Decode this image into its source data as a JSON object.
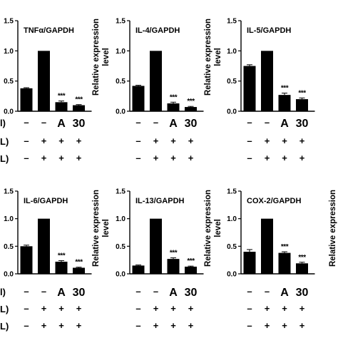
{
  "chart_data": [
    {
      "type": "bar",
      "title": "TNFα/GAPDH",
      "ylabel": "",
      "ylim": [
        0,
        1.5
      ],
      "yticks": [
        "0.0",
        "0.5",
        "1.0",
        "1.5"
      ],
      "values": [
        0.38,
        1.0,
        0.15,
        0.1
      ],
      "errors": [
        0.01,
        0,
        0.02,
        0.01
      ],
      "annotations": [
        "",
        "",
        "***",
        "***"
      ],
      "conditions": [
        [
          "–",
          "–",
          "A",
          "30"
        ],
        [
          "–",
          "+",
          "+",
          "+"
        ],
        [
          "–",
          "+",
          "+",
          "+"
        ]
      ]
    },
    {
      "type": "bar",
      "title": "IL-4/GAPDH",
      "ylabel": "Relative expression level",
      "ylim": [
        0,
        1.5
      ],
      "yticks": [
        "0.0",
        "0.5",
        "1.0",
        "1.5"
      ],
      "values": [
        0.42,
        1.0,
        0.13,
        0.07
      ],
      "errors": [
        0.01,
        0,
        0.02,
        0.01
      ],
      "annotations": [
        "",
        "",
        "***",
        "***"
      ],
      "conditions": [
        [
          "–",
          "–",
          "A",
          "30"
        ],
        [
          "–",
          "+",
          "+",
          "+"
        ],
        [
          "–",
          "+",
          "+",
          "+"
        ]
      ]
    },
    {
      "type": "bar",
      "title": "IL-5/GAPDH",
      "ylabel": "Relative expression level",
      "ylim": [
        0,
        1.5
      ],
      "yticks": [
        "0.0",
        "0.5",
        "1.0",
        "1.5"
      ],
      "values": [
        0.75,
        1.0,
        0.27,
        0.2
      ],
      "errors": [
        0.02,
        0,
        0.03,
        0.02
      ],
      "annotations": [
        "",
        "",
        "***",
        "***"
      ],
      "conditions": [
        [
          "–",
          "–",
          "A",
          "30"
        ],
        [
          "–",
          "+",
          "+",
          "+"
        ],
        [
          "–",
          "+",
          "+",
          "+"
        ]
      ]
    },
    {
      "type": "bar",
      "title": "IL-6/GAPDH",
      "ylabel": "",
      "ylim": [
        0,
        1.5
      ],
      "yticks": [
        "0.0",
        "0.5",
        "1.0",
        "1.5"
      ],
      "values": [
        0.5,
        1.0,
        0.22,
        0.11
      ],
      "errors": [
        0.02,
        0,
        0.02,
        0.01
      ],
      "annotations": [
        "",
        "",
        "***",
        "***"
      ],
      "conditions": [
        [
          "–",
          "–",
          "A",
          "30"
        ],
        [
          "–",
          "+",
          "+",
          "+"
        ],
        [
          "–",
          "+",
          "+",
          "+"
        ]
      ]
    },
    {
      "type": "bar",
      "title": "IL-13/GAPDH",
      "ylabel": "Relative expression level",
      "ylim": [
        0,
        1.5
      ],
      "yticks": [
        "0.0",
        "0.5",
        "1.0",
        "1.5"
      ],
      "values": [
        0.15,
        1.0,
        0.27,
        0.13
      ],
      "errors": [
        0.01,
        0,
        0.02,
        0.01
      ],
      "annotations": [
        "",
        "",
        "***",
        "***"
      ],
      "conditions": [
        [
          "–",
          "–",
          "A",
          "30"
        ],
        [
          "–",
          "+",
          "+",
          "+"
        ],
        [
          "–",
          "+",
          "+",
          "+"
        ]
      ]
    },
    {
      "type": "bar",
      "title": "COX-2/GAPDH",
      "ylabel": "Relative expression level",
      "ylim": [
        0,
        1.5
      ],
      "yticks": [
        "0.0",
        "0.5",
        "1.0",
        "1.5"
      ],
      "values": [
        0.4,
        1.0,
        0.38,
        0.19
      ],
      "errors": [
        0.04,
        0,
        0.02,
        0.02
      ],
      "annotations": [
        "",
        "",
        "***",
        "***"
      ],
      "conditions": [
        [
          "–",
          "–",
          "A",
          "30"
        ],
        [
          "–",
          "+",
          "+",
          "+"
        ],
        [
          "–",
          "+",
          "+",
          "+"
        ]
      ]
    }
  ],
  "row_label_fragments": [
    [
      "l)",
      "L)",
      "L)"
    ],
    [
      "l)",
      "L)",
      "L)"
    ]
  ],
  "right_edge_ylabel": "Relative expression",
  "colors": {
    "bar": "#000000",
    "axis": "#000000",
    "background": "#ffffff"
  }
}
